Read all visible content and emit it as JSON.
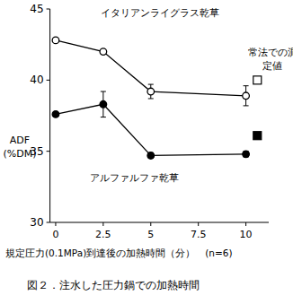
{
  "chart_data": {
    "type": "line",
    "title": "図２．注水した圧力鍋での加熱時間",
    "x_label": "規定圧力(0.1MPa)到達後の加熱時間（分）　(n=6)",
    "y_label": [
      "ADF",
      "(%DM)"
    ],
    "xlim": [
      -0.3,
      11.2
    ],
    "xticks": [
      0,
      2.5,
      5,
      7.5,
      10
    ],
    "ylim": [
      30,
      45
    ],
    "yticks": [
      30,
      35,
      40,
      45
    ],
    "grid": false,
    "series": [
      {
        "name": "イタリアンライグラス乾草",
        "color": "#000000",
        "marker": "circle-open",
        "line_style": "solid",
        "x": [
          0,
          2.5,
          5,
          10
        ],
        "values": [
          42.8,
          42.0,
          39.2,
          38.9
        ],
        "errors": [
          0.1,
          0.1,
          0.5,
          0.7
        ]
      },
      {
        "name": "アルファルファ乾草",
        "color": "#000000",
        "marker": "circle",
        "line_style": "solid",
        "x": [
          0,
          2.5,
          5,
          10
        ],
        "values": [
          37.6,
          38.3,
          34.7,
          34.8
        ],
        "errors": [
          0.1,
          0.9,
          0.2,
          0.2
        ]
      },
      {
        "name": "常法での測定値",
        "type": "scatter",
        "marker": "square",
        "colors": [
          "#ffffff",
          "#000000"
        ],
        "x": [
          10.6,
          10.6
        ],
        "values": [
          40.0,
          36.1
        ]
      }
    ]
  }
}
